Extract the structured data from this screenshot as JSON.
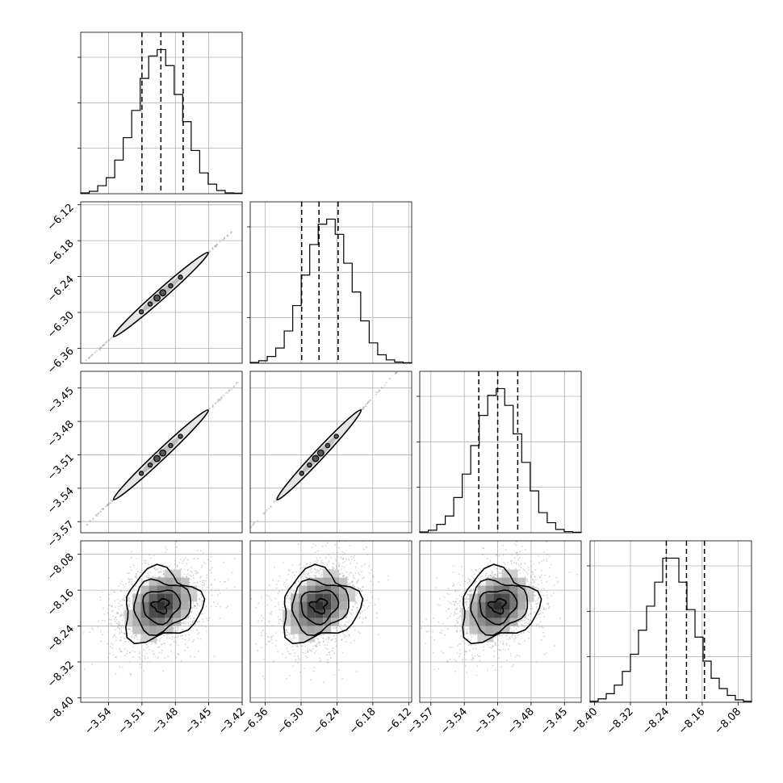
{
  "chart_data": {
    "type": "corner",
    "grid": true,
    "title": "",
    "parameters": [
      {
        "index": 0,
        "xlabel": "",
        "ticks": [
          "−3.54",
          "−3.51",
          "−3.48",
          "−3.45",
          "−3.42"
        ],
        "tick_values": [
          -3.54,
          -3.51,
          -3.48,
          -3.45,
          -3.42
        ],
        "range": [
          -3.565,
          -3.42
        ],
        "quantiles": [
          -3.51,
          -3.493,
          -3.473
        ],
        "hist": {
          "values": [
            0.5,
            1.5,
            5,
            10,
            21,
            35,
            52,
            72,
            86,
            90,
            80,
            62,
            45,
            27,
            13,
            6,
            2,
            0.5,
            0.3
          ]
        }
      },
      {
        "index": 1,
        "xlabel": "",
        "ylabel": "",
        "ticks": [
          "−6.36",
          "−6.30",
          "−6.24",
          "−6.18",
          "−6.12"
        ],
        "tick_values": [
          -6.36,
          -6.3,
          -6.24,
          -6.18,
          -6.12
        ],
        "range": [
          -6.385,
          -6.115
        ],
        "quantiles": [
          -6.299,
          -6.27,
          -6.238
        ],
        "hist": {
          "values": [
            0.5,
            1.5,
            4,
            9,
            19,
            34,
            52,
            70,
            82,
            85,
            76,
            59,
            42,
            25,
            12,
            5,
            2,
            0.7,
            0.3
          ]
        }
      },
      {
        "index": 2,
        "xlabel": "",
        "ylabel": "",
        "ticks": [
          "−3.57",
          "−3.54",
          "−3.51",
          "−3.48",
          "−3.45"
        ],
        "tick_values": [
          -3.57,
          -3.54,
          -3.51,
          -3.48,
          -3.45
        ],
        "range": [
          -3.58,
          -3.435
        ],
        "quantiles": [
          -3.527,
          -3.51,
          -3.492
        ],
        "hist": {
          "values": [
            0.5,
            1.5,
            5,
            10,
            21,
            35,
            52,
            70,
            82,
            86,
            76,
            59,
            42,
            25,
            12,
            6,
            2,
            0.7,
            0.3
          ]
        }
      },
      {
        "index": 3,
        "xlabel": "",
        "ylabel": "",
        "ticks": [
          "−8.40",
          "−8.32",
          "−8.24",
          "−8.16",
          "−8.08"
        ],
        "tick_values": [
          -8.4,
          -8.32,
          -8.24,
          -8.16,
          -8.08
        ],
        "range": [
          -8.41,
          -8.05
        ],
        "quantiles": [
          -8.24,
          -8.195,
          -8.155
        ],
        "hist": {
          "values": [
            0.3,
            1,
            2.5,
            5,
            9,
            14,
            21,
            28,
            35,
            42,
            42,
            35,
            27,
            19,
            12,
            7,
            4,
            2,
            0.7,
            0.3
          ]
        }
      }
    ],
    "hist_y_ticks": 3,
    "pairs": [
      {
        "x": 0,
        "y": 1,
        "correlation": 0.995,
        "style": "narrow-ellipse"
      },
      {
        "x": 0,
        "y": 2,
        "correlation": 0.995,
        "style": "narrow-ellipse"
      },
      {
        "x": 1,
        "y": 2,
        "correlation": 0.995,
        "style": "narrow-ellipse"
      },
      {
        "x": 0,
        "y": 3,
        "correlation": 0.3,
        "style": "blob"
      },
      {
        "x": 1,
        "y": 3,
        "correlation": 0.3,
        "style": "blob"
      },
      {
        "x": 2,
        "y": 3,
        "correlation": 0.3,
        "style": "blob"
      }
    ],
    "colors": {
      "line": "#000000",
      "grid": "#b0b0b0",
      "density": "#808080"
    }
  }
}
